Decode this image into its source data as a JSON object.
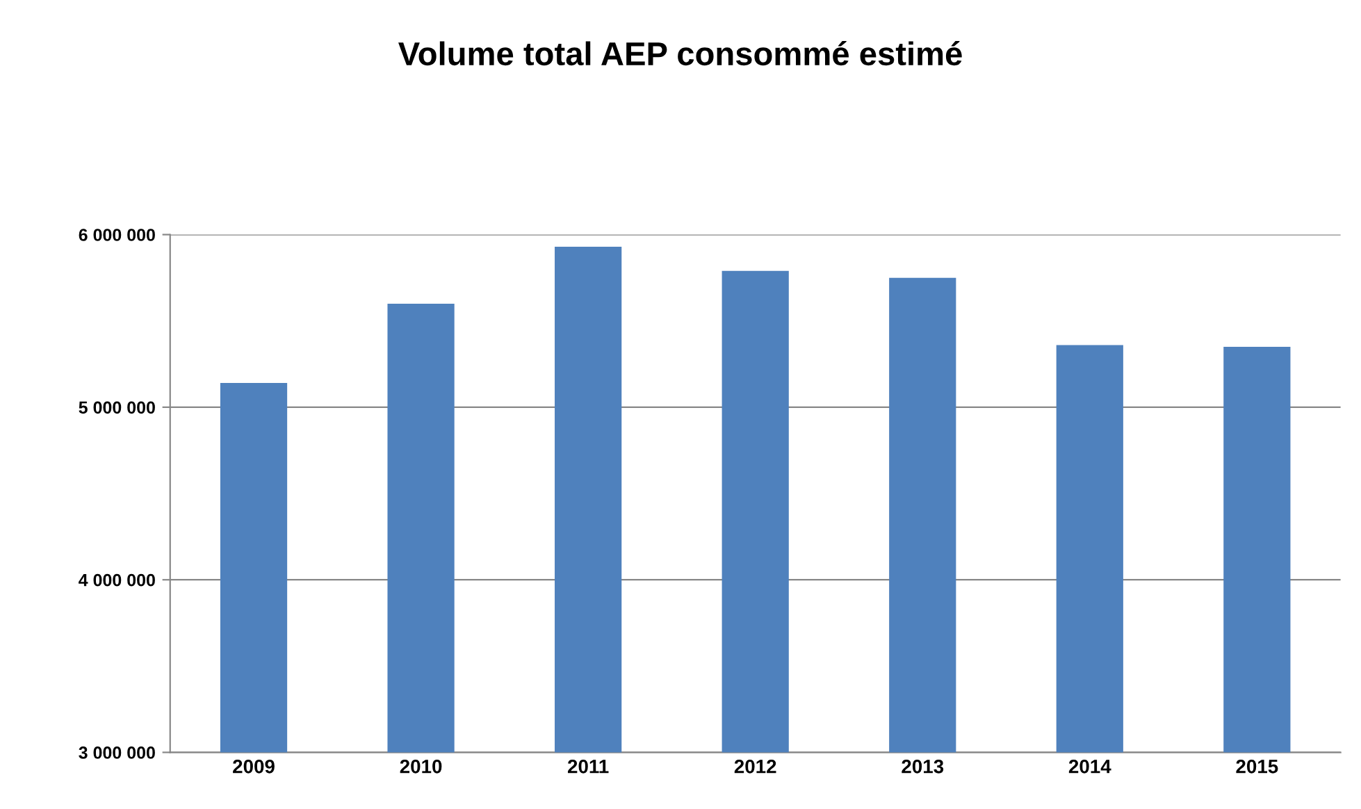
{
  "chart_data": {
    "type": "bar",
    "title": "Volume total AEP consommé estimé",
    "categories": [
      "2009",
      "2010",
      "2011",
      "2012",
      "2013",
      "2014",
      "2015"
    ],
    "values": [
      5140000,
      5600000,
      5930000,
      5790000,
      5750000,
      5360000,
      5350000
    ],
    "color": "#4f81bd",
    "ylim": [
      3000000,
      6000000
    ],
    "yticks": [
      {
        "value": 3000000,
        "label": "3 000 000"
      },
      {
        "value": 4000000,
        "label": "4 000 000"
      },
      {
        "value": 5000000,
        "label": "5 000 000"
      },
      {
        "value": 6000000,
        "label": "6 000 000"
      }
    ],
    "grid": "y"
  }
}
